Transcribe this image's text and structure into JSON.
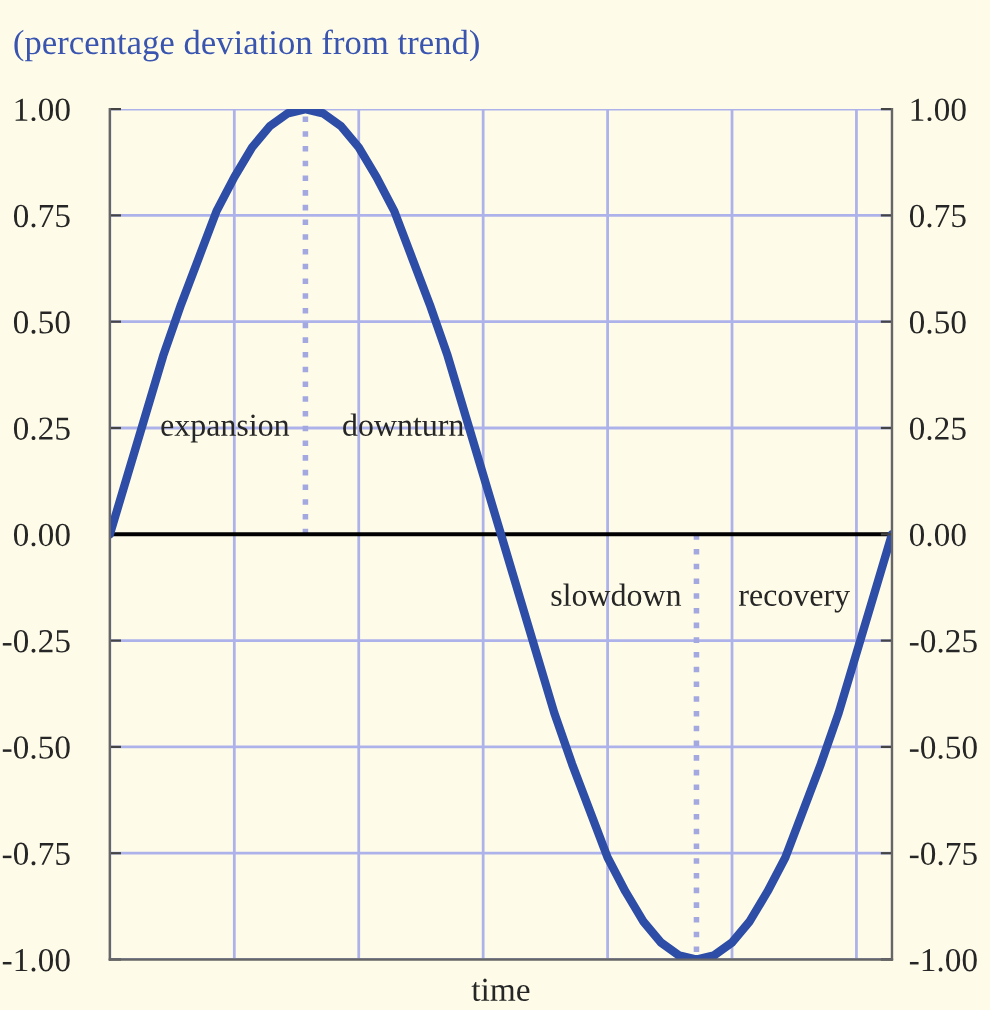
{
  "chart_data": {
    "type": "line",
    "title": "(percentage deviation from trend)",
    "xlabel": "time",
    "categories": [
      null,
      null,
      null,
      null,
      null,
      null,
      null,
      null,
      null,
      null,
      null,
      null,
      null,
      null,
      null,
      null,
      null,
      null,
      null,
      null,
      null,
      null,
      null,
      null,
      null,
      null,
      null,
      null,
      null,
      null,
      null,
      null,
      null,
      null,
      null,
      null,
      null,
      null,
      null,
      null,
      null,
      null,
      null,
      null,
      null
    ],
    "ylim": [
      -1,
      1
    ],
    "yticks": [
      {
        "value": -1,
        "label": "-1.00"
      },
      {
        "value": -0.75,
        "label": "-0.75"
      },
      {
        "value": -0.5,
        "label": "-0.50"
      },
      {
        "value": -0.25,
        "label": "-0.25"
      },
      {
        "value": 0,
        "label": "0.00"
      },
      {
        "value": 0.25,
        "label": "0.25"
      },
      {
        "value": 0.5,
        "label": "0.50"
      },
      {
        "value": 0.75,
        "label": "0.75"
      },
      {
        "value": 1,
        "label": "1.00"
      }
    ],
    "y2lim": [
      -1,
      1
    ],
    "y2ticks": [
      {
        "value": -1,
        "label": "-1.00"
      },
      {
        "value": -0.75,
        "label": "-0.75"
      },
      {
        "value": -0.5,
        "label": "-0.50"
      },
      {
        "value": -0.25,
        "label": "-0.25"
      },
      {
        "value": 0,
        "label": "0.00"
      },
      {
        "value": 0.25,
        "label": "0.25"
      },
      {
        "value": 0.5,
        "label": "0.50"
      },
      {
        "value": 0.75,
        "label": "0.75"
      },
      {
        "value": 1,
        "label": "1.00"
      }
    ],
    "grid": true,
    "series": [
      {
        "color": "#2e4da6",
        "line_style": "solid",
        "values": [
          0,
          0.14,
          0.28,
          0.42,
          0.54,
          0.65,
          0.76,
          0.84,
          0.91,
          0.96,
          0.99,
          1,
          0.99,
          0.96,
          0.91,
          0.84,
          0.76,
          0.65,
          0.54,
          0.42,
          0.28,
          0.14,
          0,
          -0.14,
          -0.28,
          -0.42,
          -0.54,
          -0.65,
          -0.76,
          -0.84,
          -0.91,
          -0.96,
          -0.99,
          -1,
          -0.99,
          -0.96,
          -0.91,
          -0.84,
          -0.76,
          -0.65,
          -0.54,
          -0.42,
          -0.28,
          -0.14,
          0
        ]
      }
    ],
    "ref_lines": [
      {
        "axis": "y",
        "value": 0,
        "color": "#000000",
        "line_style": "solid"
      }
    ],
    "annotations": [
      "expansion",
      "downturn",
      "slowdown",
      "recovery"
    ]
  }
}
